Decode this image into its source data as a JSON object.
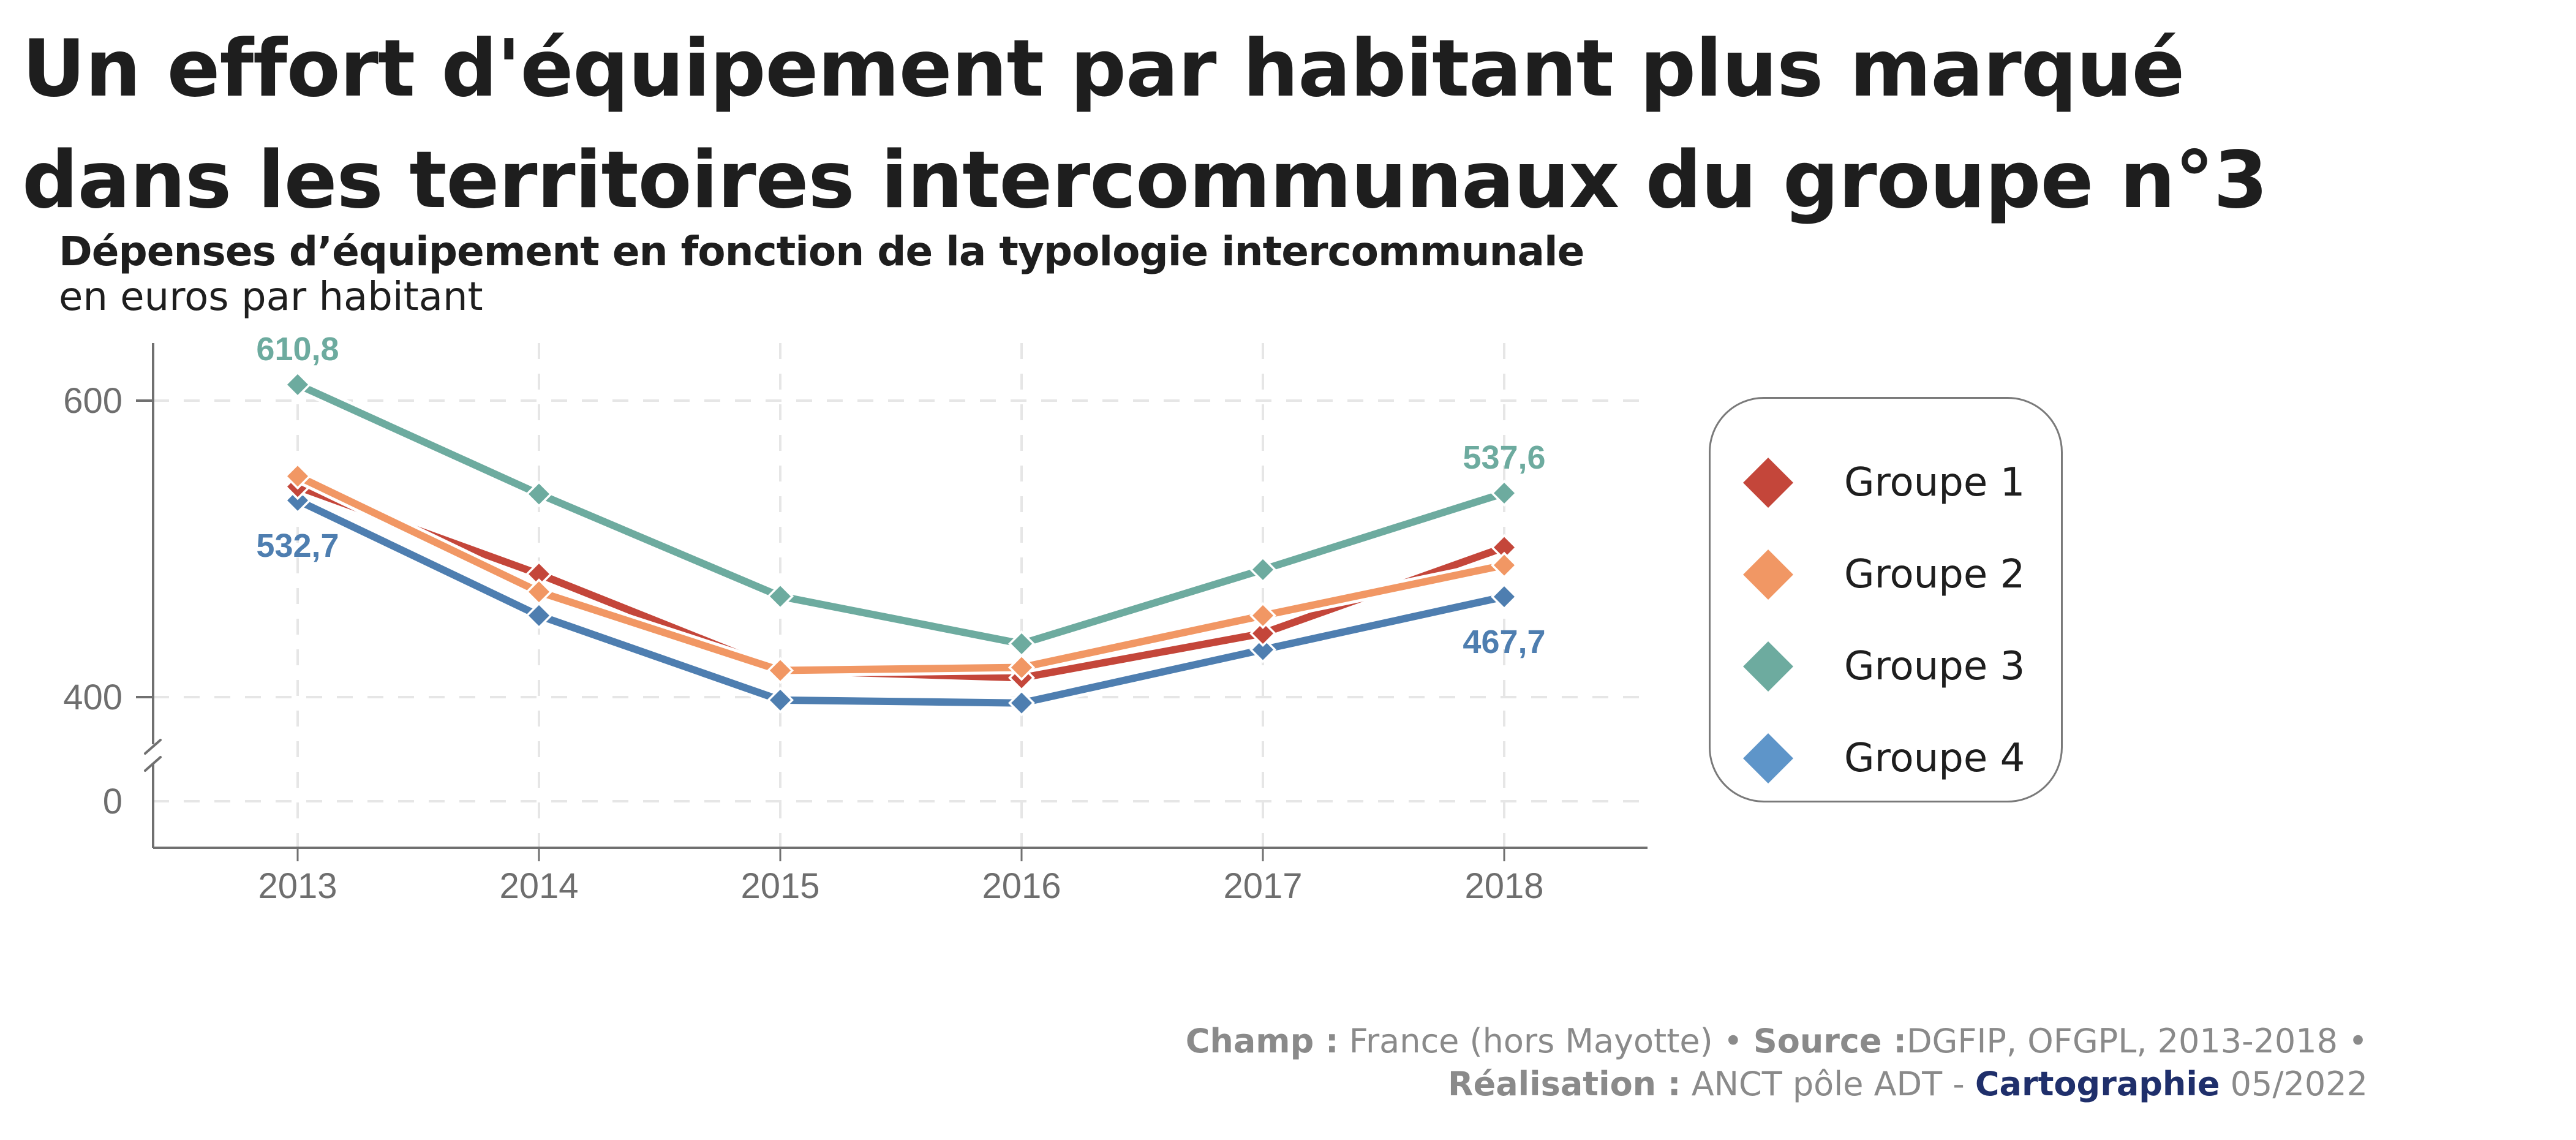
{
  "header": {
    "title": "Un effort d'équipement par habitant plus marqué dans les territoires intercommunaux du groupe n°3",
    "subtitle": "Dépenses d’équipement en fonction de la typologie intercommunale",
    "unit": "en euros par habitant"
  },
  "chart_data": {
    "type": "line",
    "title": "Dépenses d’équipement en fonction de la typologie intercommunale",
    "ylabel": "en euros par habitant",
    "xlabel": "",
    "x": [
      "2013",
      "2014",
      "2015",
      "2016",
      "2017",
      "2018"
    ],
    "yticks": [
      "600",
      "400",
      "0"
    ],
    "ylim": [
      0,
      640
    ],
    "axis_break": "between 0 and 400",
    "grid": true,
    "legend_position": "right",
    "series": [
      {
        "name": "Groupe 1",
        "color": "#c4463a",
        "values": [
          542,
          483,
          418,
          413,
          443,
          501
        ]
      },
      {
        "name": "Groupe 2",
        "color": "#f19764",
        "values": [
          549,
          471,
          418,
          420,
          455,
          489
        ]
      },
      {
        "name": "Groupe 3",
        "color": "#6dab9f",
        "values": [
          610.8,
          537,
          468,
          436,
          486,
          537.6
        ]
      },
      {
        "name": "Groupe 4",
        "color": "#4e7eb0",
        "values": [
          532.7,
          455,
          398,
          396,
          432,
          467.7
        ]
      }
    ],
    "annotations": [
      {
        "series": "Groupe 3",
        "x": "2013",
        "text": "610,8",
        "position": "above"
      },
      {
        "series": "Groupe 4",
        "x": "2013",
        "text": "532,7",
        "position": "below"
      },
      {
        "series": "Groupe 3",
        "x": "2018",
        "text": "537,6",
        "position": "above"
      },
      {
        "series": "Groupe 4",
        "x": "2018",
        "text": "467,7",
        "position": "below"
      }
    ]
  },
  "legend": {
    "items": [
      {
        "label": "Groupe 1",
        "color": "#c4463a"
      },
      {
        "label": "Groupe 2",
        "color": "#f19764"
      },
      {
        "label": "Groupe 3",
        "color": "#6dab9f"
      },
      {
        "label": "Groupe 4",
        "color": "#5e95c9"
      }
    ]
  },
  "footer": {
    "champ_label": "Champ :",
    "champ_value": " France (hors Mayotte) • ",
    "source_label": "Source :",
    "source_value": "DGFIP, OFGPL, 2013-2018 •",
    "realisation_label": "Réalisation :",
    "realisation_value": " ANCT pôle ADT - ",
    "cartographie_label": "Cartographie",
    "date": " 05/2022"
  }
}
